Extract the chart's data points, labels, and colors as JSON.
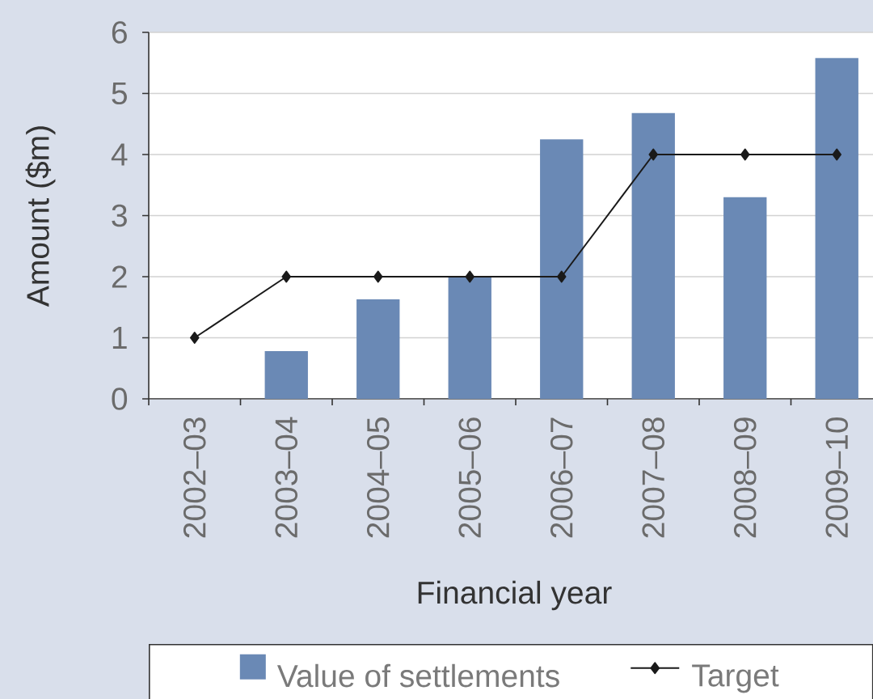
{
  "chart_data": {
    "type": "bar",
    "xlabel": "Financial year",
    "ylabel": "Amount ($m)",
    "categories": [
      "2002–03",
      "2003–04",
      "2004–05",
      "2005–06",
      "2006–07",
      "2007–08",
      "2008–09",
      "2009–10"
    ],
    "series": [
      {
        "name": "Value of settlements",
        "color": "#6a89b5",
        "values": [
          0,
          0.78,
          1.63,
          2.0,
          4.25,
          4.68,
          3.3,
          5.58
        ]
      },
      {
        "name": "Target",
        "type": "line",
        "color": "#1a1a1a",
        "values": [
          1,
          2,
          2,
          2,
          2,
          4,
          4,
          4
        ]
      }
    ],
    "marker": "diamond",
    "line_style": "solid",
    "ylim": [
      0,
      6
    ],
    "yticks": [
      0,
      1,
      2,
      3,
      4,
      5,
      6
    ],
    "grid": "y",
    "legend": "bottom"
  }
}
